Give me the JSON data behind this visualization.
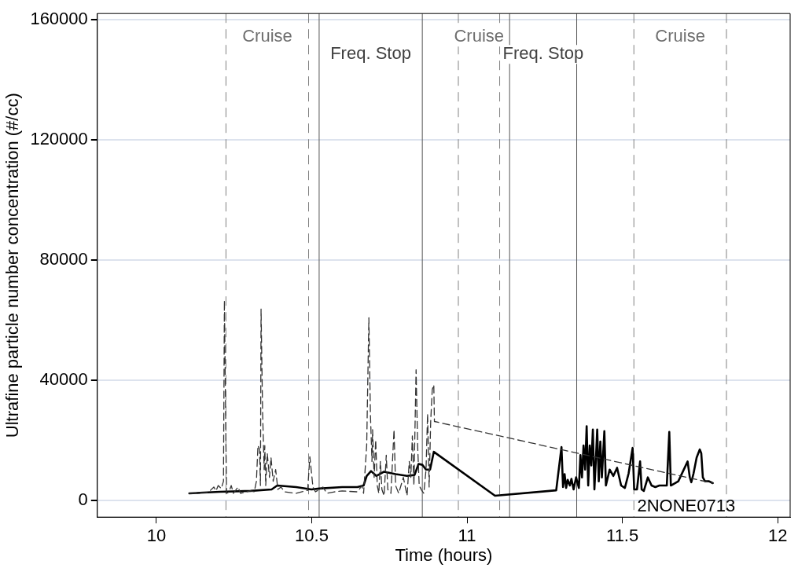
{
  "chart_data": {
    "type": "line",
    "xlabel": "Time (hours)",
    "ylabel": "Ultrafine particle number concentration (#/cc)",
    "xlim": [
      9.81,
      12.04
    ],
    "xticks": [
      10,
      {
        "value": 10.5,
        "label": "10.5"
      },
      11,
      {
        "value": 11.5,
        "label": "11.5"
      },
      12
    ],
    "ylim": [
      -5500,
      162000
    ],
    "yticks": [
      0,
      40000,
      80000,
      120000,
      160000
    ],
    "grid": "y",
    "legend": false,
    "marker": "none",
    "series": [
      {
        "color": "#333333",
        "line_style": "dashed",
        "x": [
          10.106,
          10.167,
          10.185,
          10.192,
          10.199,
          10.209,
          10.216,
          10.219,
          10.224,
          10.226,
          10.234,
          10.241,
          10.248,
          10.263,
          10.271,
          10.303,
          10.315,
          10.322,
          10.327,
          10.332,
          10.335,
          10.337,
          10.342,
          10.347,
          10.349,
          10.352,
          10.357,
          10.364,
          10.369,
          10.376,
          10.384,
          10.391,
          10.401,
          10.413,
          10.45,
          10.487,
          10.494,
          10.504,
          10.512,
          10.536,
          10.549,
          10.573,
          10.598,
          10.647,
          10.662,
          10.667,
          10.677,
          10.684,
          10.689,
          10.694,
          10.696,
          10.701,
          10.706,
          10.711,
          10.716,
          10.721,
          10.726,
          10.733,
          10.74,
          10.745,
          10.755,
          10.765,
          10.77,
          10.78,
          10.795,
          10.807,
          10.814,
          10.819,
          10.824,
          10.829,
          10.836,
          10.841,
          10.846,
          10.854,
          10.861,
          10.868,
          10.873,
          10.878,
          10.883,
          10.888,
          10.893,
          10.895,
          11.791
        ],
        "values": [
          2400,
          2700,
          4500,
          3200,
          5000,
          4000,
          6400,
          66600,
          18300,
          2400,
          2900,
          5000,
          2400,
          4500,
          2400,
          3200,
          2900,
          6400,
          18300,
          17000,
          5000,
          63700,
          28900,
          10300,
          18300,
          5000,
          15700,
          7700,
          14300,
          6400,
          10300,
          3700,
          4500,
          2900,
          2400,
          3400,
          14600,
          4500,
          2900,
          4500,
          2400,
          2900,
          3200,
          2900,
          5000,
          2400,
          18300,
          60800,
          28900,
          13000,
          23600,
          7700,
          20200,
          5000,
          2400,
          13000,
          3700,
          1600,
          15100,
          3700,
          2400,
          23600,
          5000,
          2400,
          7700,
          1600,
          13000,
          7700,
          21500,
          5000,
          43500,
          18300,
          5000,
          3400,
          2400,
          10300,
          28900,
          4500,
          26300,
          36900,
          38500,
          26300,
          5800
        ]
      },
      {
        "color": "#000000",
        "line_style": "solid",
        "x": [
          10.106,
          10.204,
          10.303,
          10.371,
          10.389,
          10.45,
          10.499,
          10.524,
          10.598,
          10.647,
          10.667,
          10.677,
          10.691,
          10.708,
          10.733,
          10.77,
          10.807,
          10.831,
          10.844,
          10.856,
          10.868,
          10.881,
          10.893,
          11.09,
          11.287,
          11.304,
          11.309,
          11.314,
          11.319,
          11.324,
          11.331,
          11.336,
          11.343,
          11.351,
          11.36,
          11.365,
          11.37,
          11.375,
          11.38,
          11.385,
          11.39,
          11.395,
          11.4,
          11.405,
          11.41,
          11.415,
          11.419,
          11.424,
          11.429,
          11.434,
          11.442,
          11.447,
          11.459,
          11.471,
          11.483,
          11.496,
          11.508,
          11.52,
          11.533,
          11.538,
          11.547,
          11.557,
          11.562,
          11.569,
          11.582,
          11.594,
          11.606,
          11.619,
          11.643,
          11.651,
          11.656,
          11.68,
          11.71,
          11.717,
          11.722,
          11.729,
          11.739,
          11.749,
          11.754,
          11.759,
          11.766,
          11.779,
          11.791
        ],
        "values": [
          2400,
          2900,
          3200,
          3700,
          5000,
          4500,
          3700,
          4000,
          4500,
          4500,
          5000,
          8200,
          9800,
          8200,
          9600,
          8800,
          8200,
          8500,
          12200,
          11900,
          10300,
          10300,
          16200,
          1600,
          3400,
          17800,
          4500,
          8800,
          4200,
          6900,
          5000,
          7200,
          3700,
          7700,
          4200,
          15100,
          7700,
          18300,
          10300,
          24700,
          5000,
          18300,
          11700,
          23600,
          3700,
          14300,
          23600,
          6400,
          19600,
          7700,
          23100,
          5000,
          10300,
          8200,
          10900,
          5000,
          4200,
          9000,
          17500,
          3700,
          3700,
          13000,
          3700,
          3200,
          7700,
          5000,
          4500,
          5000,
          5000,
          22800,
          5000,
          6400,
          13000,
          7700,
          6100,
          9000,
          14300,
          17000,
          15700,
          7700,
          6400,
          6400,
          5800
        ]
      }
    ],
    "ref_lines": [
      {
        "axis": "x",
        "value": 10.224,
        "color": "#808080",
        "line_style": "dashed"
      },
      {
        "axis": "x",
        "value": 10.49,
        "color": "#808080",
        "line_style": "dashed"
      },
      {
        "axis": "x",
        "value": 10.524,
        "color": "#555555",
        "line_style": "solid"
      },
      {
        "axis": "x",
        "value": 10.856,
        "color": "#555555",
        "line_style": "solid"
      },
      {
        "axis": "x",
        "value": 10.972,
        "color": "#808080",
        "line_style": "dashed"
      },
      {
        "axis": "x",
        "value": 11.105,
        "color": "#808080",
        "line_style": "dashed"
      },
      {
        "axis": "x",
        "value": 11.137,
        "color": "#555555",
        "line_style": "solid"
      },
      {
        "axis": "x",
        "value": 11.353,
        "color": "#555555",
        "line_style": "solid"
      },
      {
        "axis": "x",
        "value": 11.537,
        "color": "#808080",
        "line_style": "dashed"
      },
      {
        "axis": "x",
        "value": 11.835,
        "color": "#808080",
        "line_style": "dashed"
      }
    ],
    "annotations": [
      "Cruise",
      "Freq. Stop",
      "Cruise",
      "Freq. Stop",
      "Cruise",
      "2NONE0713"
    ]
  }
}
